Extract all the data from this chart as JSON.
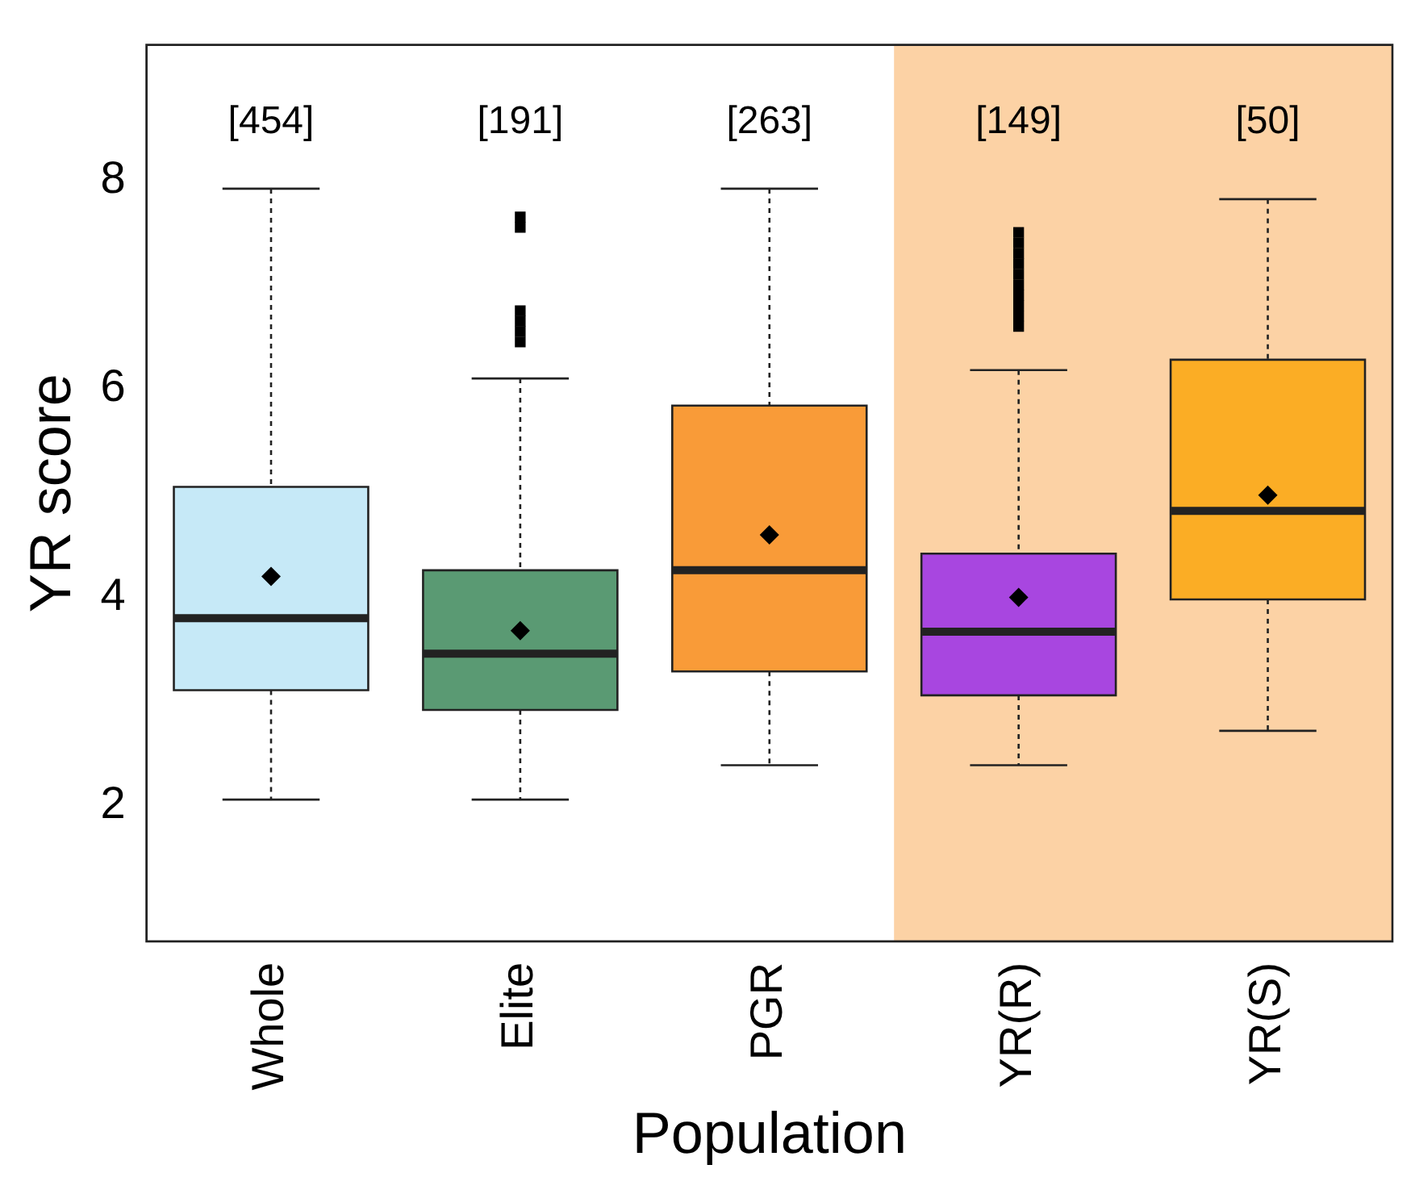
{
  "chart_data": {
    "type": "box",
    "xlabel": "Population",
    "ylabel": "YR score",
    "categories": [
      "Whole",
      "Elite",
      "PGR",
      "YR(R)",
      "YR(S)"
    ],
    "colors": [
      "#c6e9f7",
      "#5a9a73",
      "#f99b38",
      "#a846e0",
      "#fbad25"
    ],
    "boxes": [
      {
        "low": 2.06,
        "q1": 3.11,
        "median": 3.8,
        "q3": 5.06,
        "high": 7.92,
        "mean": 4.2
      },
      {
        "low": 2.06,
        "q1": 2.92,
        "median": 3.46,
        "q3": 4.26,
        "high": 6.1,
        "mean": 3.68,
        "outliers": [
          7.55,
          7.65,
          6.45,
          6.55,
          6.65,
          6.75
        ]
      },
      {
        "low": 2.39,
        "q1": 3.29,
        "median": 4.26,
        "q3": 5.84,
        "high": 7.92,
        "mean": 4.6
      },
      {
        "low": 2.39,
        "q1": 3.06,
        "median": 3.67,
        "q3": 4.42,
        "high": 6.18,
        "mean": 4.0,
        "outliers": [
          6.6,
          6.7,
          6.8,
          6.9,
          7.0,
          7.1,
          7.2,
          7.3,
          7.4,
          7.5
        ]
      },
      {
        "low": 2.72,
        "q1": 3.98,
        "median": 4.83,
        "q3": 6.28,
        "high": 7.82,
        "mean": 4.98
      }
    ],
    "ylim": [
      0.7,
      9.3
    ],
    "yticks": [
      2,
      4,
      6,
      8
    ],
    "grid": false,
    "legend": false,
    "bands": [
      {
        "axis": "x",
        "from": "YR(R)",
        "to": "YR(S)",
        "color": "#fcd2a5"
      }
    ],
    "annotations": [
      "[454]",
      "[191]",
      "[263]",
      "[149]",
      "[50]"
    ]
  }
}
